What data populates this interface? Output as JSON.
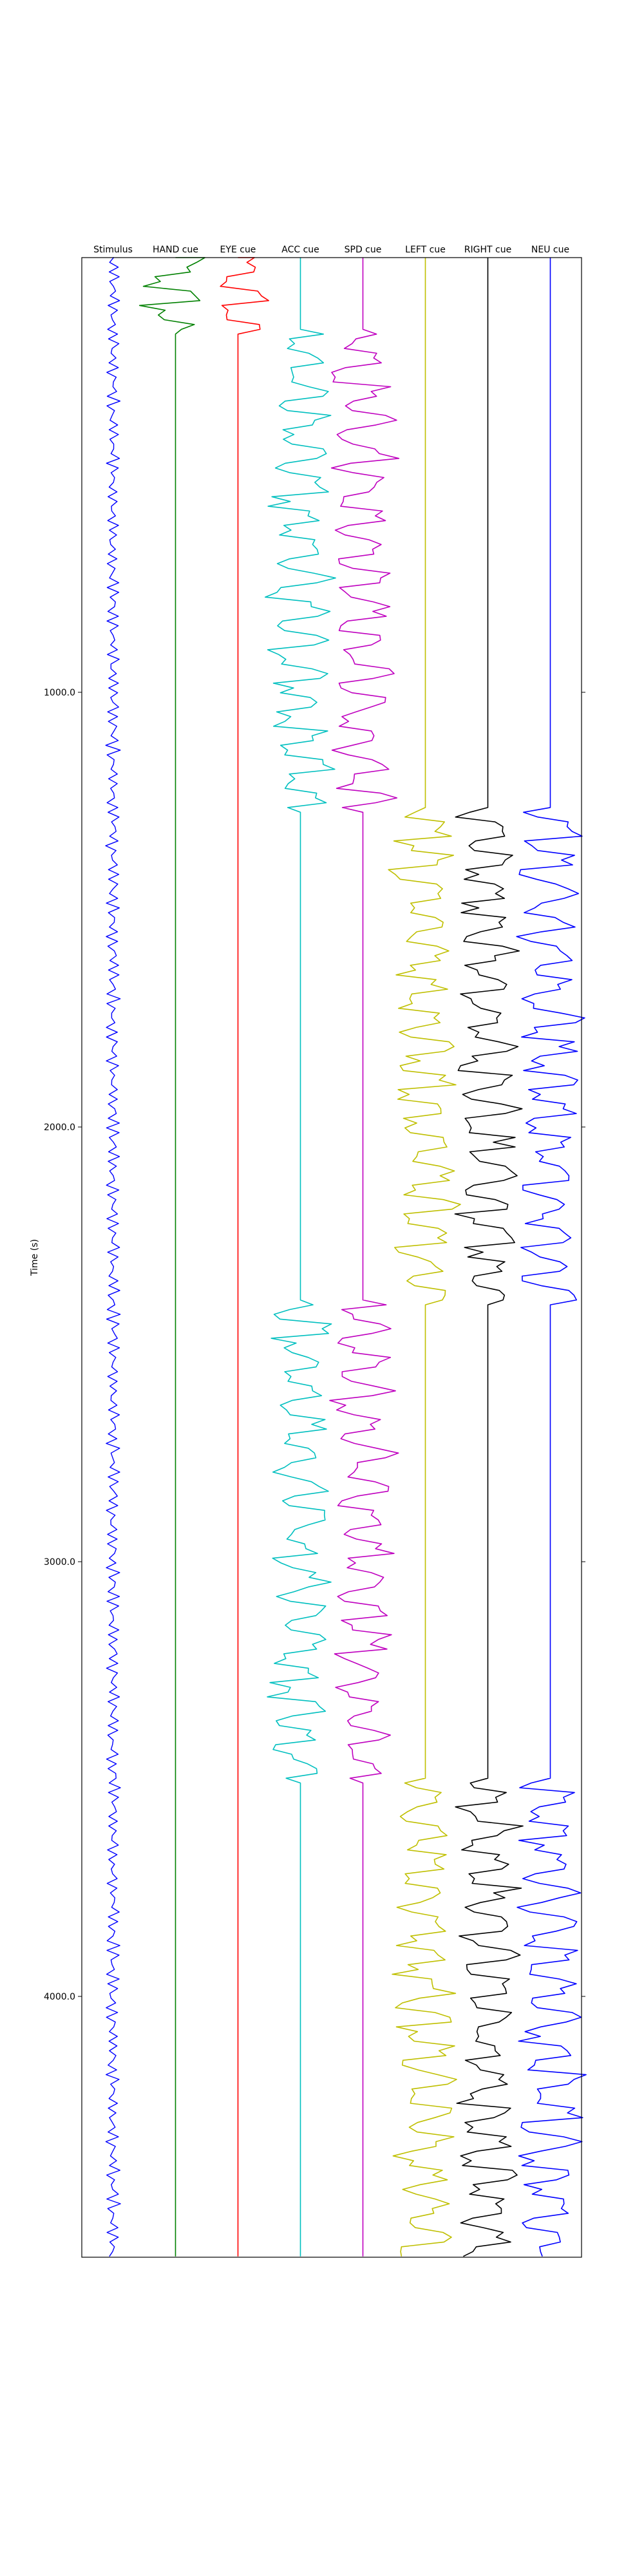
{
  "chart_data": {
    "type": "line",
    "title": "",
    "xlabel": "",
    "ylabel": "Time (s)",
    "ylim": [
      0,
      4600
    ],
    "y_inverted": true,
    "yticks": [
      1000,
      2000,
      3000,
      4000
    ],
    "ytick_labels": [
      "1000.0",
      "2000.0",
      "3000.0",
      "4000.0"
    ],
    "grid": false,
    "legend": "none",
    "trace_style": "stacked event-related waveforms; each cue column is flat except during its active blocks",
    "series": [
      {
        "name": "Stimulus",
        "color": "#0000ff",
        "active_blocks": [
          [
            0,
            4600
          ]
        ]
      },
      {
        "name": "HAND cue",
        "color": "#008000",
        "active_blocks": [
          [
            0,
            170
          ]
        ]
      },
      {
        "name": "EYE cue",
        "color": "#ff0000",
        "active_blocks": [
          [
            0,
            170
          ]
        ]
      },
      {
        "name": "ACC cue",
        "color": "#00bfbf",
        "active_blocks": [
          [
            170,
            1270
          ],
          [
            2400,
            3500
          ]
        ]
      },
      {
        "name": "SPD cue",
        "color": "#bf00bf",
        "active_blocks": [
          [
            170,
            1270
          ],
          [
            2400,
            3500
          ]
        ]
      },
      {
        "name": "LEFT cue",
        "color": "#bfbf00",
        "active_blocks": [
          [
            1270,
            2400
          ],
          [
            3500,
            4600
          ]
        ]
      },
      {
        "name": "RIGHT cue",
        "color": "#000000",
        "active_blocks": [
          [
            1270,
            2400
          ],
          [
            3500,
            4600
          ]
        ]
      },
      {
        "name": "NEU cue",
        "color": "#0000ff",
        "active_blocks": [
          [
            1270,
            2400
          ],
          [
            3500,
            4600
          ]
        ]
      }
    ]
  }
}
